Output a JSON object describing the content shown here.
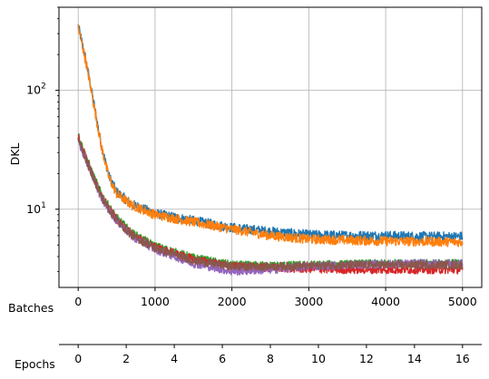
{
  "chart_data": {
    "type": "line",
    "title": "",
    "ylabel": "DKL",
    "yscale": "log",
    "ylim": [
      2.2,
      500
    ],
    "grid": true,
    "xlabel_batches": "Batches",
    "xlabel_epochs": "Epochs",
    "x_batches": {
      "lim": [
        -250,
        5250
      ],
      "ticks": [
        0,
        1000,
        2000,
        3000,
        4000,
        5000
      ],
      "tick_labels": [
        "0",
        "1000",
        "2000",
        "3000",
        "4000",
        "5000"
      ]
    },
    "x_epochs": {
      "ticks": [
        0,
        2,
        4,
        6,
        8,
        10,
        12,
        14,
        16
      ],
      "tick_labels": [
        "0",
        "2",
        "4",
        "6",
        "8",
        "10",
        "12",
        "14",
        "16"
      ]
    },
    "y_tick_labels": [
      {
        "value": 10,
        "base": "10",
        "exp": "1"
      },
      {
        "value": 100,
        "base": "10",
        "exp": "2"
      }
    ],
    "series": [
      {
        "color": "#1f77b4",
        "noise": 0.035,
        "x": [
          0,
          100,
          200,
          300,
          400,
          500,
          700,
          1000,
          1500,
          2000,
          2500,
          3000,
          3500,
          4000,
          4500,
          5000
        ],
        "y": [
          350,
          180,
          80,
          35,
          19,
          14,
          11,
          9.2,
          8.0,
          7.0,
          6.5,
          6.1,
          6.0,
          6.0,
          5.9,
          5.9
        ]
      },
      {
        "color": "#ff7f0e",
        "noise": 0.035,
        "x": [
          0,
          100,
          200,
          300,
          400,
          500,
          700,
          1000,
          1500,
          2000,
          2500,
          3000,
          3500,
          4000,
          4500,
          5000
        ],
        "y": [
          340,
          175,
          78,
          34,
          18.5,
          13.5,
          10.8,
          9.0,
          7.8,
          6.8,
          6.0,
          5.6,
          5.5,
          5.4,
          5.35,
          5.3
        ]
      },
      {
        "color": "#2ca02c",
        "noise": 0.03,
        "x": [
          0,
          100,
          200,
          300,
          400,
          500,
          700,
          1000,
          1500,
          2000,
          2500,
          3000,
          3500,
          4000,
          4500,
          5000
        ],
        "y": [
          42,
          28,
          19,
          13.5,
          10.5,
          8.5,
          6.3,
          4.9,
          3.9,
          3.4,
          3.35,
          3.4,
          3.45,
          3.5,
          3.5,
          3.5
        ]
      },
      {
        "color": "#d62728",
        "noise": 0.03,
        "x": [
          0,
          100,
          200,
          300,
          400,
          500,
          700,
          1000,
          1500,
          2000,
          2500,
          3000,
          3500,
          4000,
          4500,
          5000
        ],
        "y": [
          40,
          27,
          18.5,
          13,
          10.2,
          8.2,
          6.1,
          4.8,
          3.8,
          3.3,
          3.2,
          3.15,
          3.1,
          3.1,
          3.1,
          3.1
        ]
      },
      {
        "color": "#9467bd",
        "noise": 0.03,
        "x": [
          0,
          100,
          200,
          300,
          400,
          500,
          700,
          1000,
          1500,
          2000,
          2500,
          3000,
          3500,
          4000,
          4500,
          5000
        ],
        "y": [
          38,
          26,
          18,
          12.5,
          9.8,
          8.0,
          5.9,
          4.6,
          3.5,
          3.0,
          3.1,
          3.3,
          3.4,
          3.45,
          3.5,
          3.5
        ]
      },
      {
        "color": "#8c564b",
        "noise": 0.03,
        "x": [
          0,
          100,
          200,
          300,
          400,
          500,
          700,
          1000,
          1500,
          2000,
          2500,
          3000,
          3500,
          4000,
          4500,
          5000
        ],
        "y": [
          39,
          26.5,
          18.2,
          12.8,
          10.0,
          8.1,
          6.0,
          4.7,
          3.7,
          3.3,
          3.3,
          3.35,
          3.4,
          3.4,
          3.4,
          3.4
        ]
      }
    ]
  }
}
